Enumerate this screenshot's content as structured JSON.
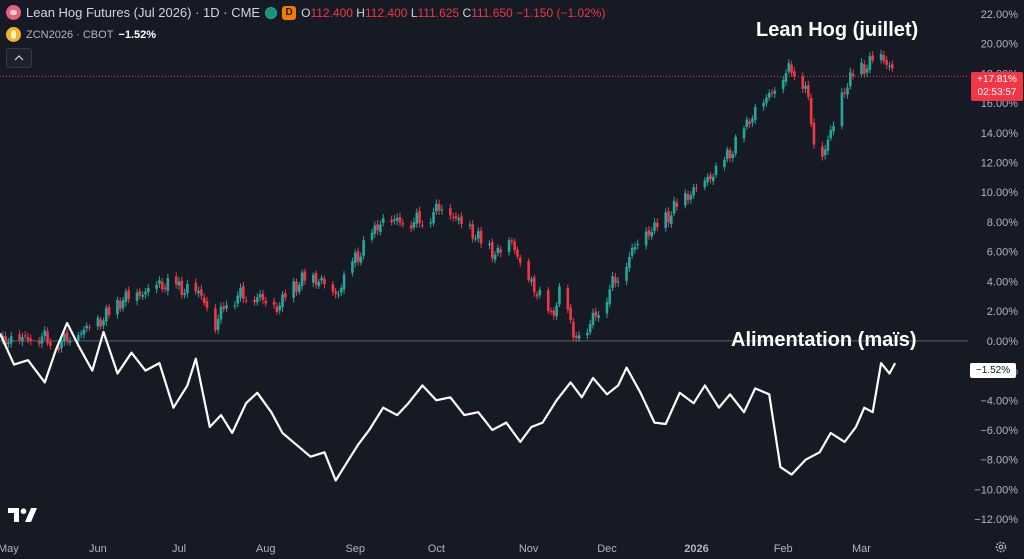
{
  "header": {
    "title": "Lean Hog Futures (Jul 2026) · 1D · CME",
    "interval_badge": "D",
    "ohlc": {
      "o_label": "O",
      "o": "112.400",
      "h_label": "H",
      "h": "112.400",
      "l_label": "L",
      "l": "111.625",
      "c_label": "C",
      "c": "111.650",
      "change": "−1.150 (−1.02%)"
    },
    "compare_symbol": "ZCN2026 · CBOT",
    "compare_change": "−1.52%"
  },
  "labels": {
    "hog": "Lean Hog (juillet)",
    "corn": "Alimentation (maïs)"
  },
  "price_tag": {
    "pct": "+17.81%",
    "countdown": "02:53:57"
  },
  "corn_tag": "−1.52%",
  "colors": {
    "background": "#161a25",
    "up": "#26a69a",
    "down": "#f23645",
    "corn_line": "#ffffff",
    "grid_text": "#b2b5be",
    "zero_line": "#5d606b",
    "last_price_line": "#f23645"
  },
  "icons": {
    "hog": "pig-icon",
    "corn": "corn-icon",
    "logo": "tradingview-logo-icon",
    "settings": "gear-icon",
    "collapse": "chevron-up-icon"
  },
  "chart_data": {
    "type": "line",
    "title": "Lean Hog Futures (Jul 2026) · 1D · CME",
    "scale": "percent change",
    "y_ticks": [
      "22.00%",
      "20.00%",
      "18.00%",
      "16.00%",
      "14.00%",
      "12.00%",
      "10.00%",
      "8.00%",
      "6.00%",
      "4.00%",
      "2.00%",
      "0.00%",
      "−2.00%",
      "−4.00%",
      "−6.00%",
      "−8.00%",
      "−10.00%",
      "−12.00%"
    ],
    "ylim": [
      -13.0,
      22.4
    ],
    "x_ticks": [
      "May",
      "Jun",
      "Jul",
      "Aug",
      "Sep",
      "Oct",
      "Nov",
      "Dec",
      "2026",
      "Feb",
      "Mar"
    ],
    "x_tick_dates": [
      "2025-05-01",
      "2025-06-02",
      "2025-07-01",
      "2025-08-01",
      "2025-09-02",
      "2025-10-01",
      "2025-11-03",
      "2025-12-01",
      "2026-01-02",
      "2026-02-02",
      "2026-03-02"
    ],
    "xlim": [
      "2025-04-28",
      "2026-04-08"
    ],
    "last_value_line": 17.8,
    "series": [
      {
        "name": "Lean Hog Futures (Jul 2026)",
        "type": "candlestick",
        "anchors": [
          [
            "2025-04-29",
            0.0
          ],
          [
            "2025-05-12",
            0.3
          ],
          [
            "2025-05-19",
            -0.1
          ],
          [
            "2025-05-27",
            0.6
          ],
          [
            "2025-06-04",
            1.5
          ],
          [
            "2025-06-11",
            2.8
          ],
          [
            "2025-06-18",
            3.2
          ],
          [
            "2025-06-25",
            3.8
          ],
          [
            "2025-07-02",
            3.5
          ],
          [
            "2025-07-09",
            3.1
          ],
          [
            "2025-07-14",
            1.0
          ],
          [
            "2025-07-18",
            2.8
          ],
          [
            "2025-07-24",
            3.1
          ],
          [
            "2025-07-30",
            2.9
          ],
          [
            "2025-08-05",
            2.2
          ],
          [
            "2025-08-10",
            3.5
          ],
          [
            "2025-08-16",
            4.3
          ],
          [
            "2025-08-21",
            4.0
          ],
          [
            "2025-08-26",
            3.0
          ],
          [
            "2025-09-01",
            5.2
          ],
          [
            "2025-09-06",
            6.5
          ],
          [
            "2025-09-11",
            8.0
          ],
          [
            "2025-09-17",
            8.1
          ],
          [
            "2025-09-23",
            8.0
          ],
          [
            "2025-09-29",
            8.5
          ],
          [
            "2025-10-03",
            9.1
          ],
          [
            "2025-10-08",
            8.2
          ],
          [
            "2025-10-13",
            7.5
          ],
          [
            "2025-10-18",
            6.4
          ],
          [
            "2025-10-23",
            5.8
          ],
          [
            "2025-10-28",
            6.8
          ],
          [
            "2025-11-01",
            4.5
          ],
          [
            "2025-11-06",
            3.3
          ],
          [
            "2025-11-11",
            1.5
          ],
          [
            "2025-11-15",
            3.8
          ],
          [
            "2025-11-19",
            0.3
          ],
          [
            "2025-11-23",
            0.5
          ],
          [
            "2025-11-27",
            1.8
          ],
          [
            "2025-12-02",
            3.5
          ],
          [
            "2025-12-07",
            5.0
          ],
          [
            "2025-12-13",
            7.0
          ],
          [
            "2025-12-20",
            7.8
          ],
          [
            "2025-12-28",
            9.5
          ],
          [
            "2026-01-04",
            10.5
          ],
          [
            "2026-01-11",
            11.8
          ],
          [
            "2026-01-17",
            13.5
          ],
          [
            "2026-01-23",
            15.5
          ],
          [
            "2026-01-28",
            16.5
          ],
          [
            "2026-02-02",
            18.0
          ],
          [
            "2026-02-06",
            18.3
          ],
          [
            "2026-02-10",
            17.2
          ],
          [
            "2026-02-13",
            13.5
          ],
          [
            "2026-02-16",
            12.5
          ],
          [
            "2026-02-20",
            14.5
          ],
          [
            "2026-02-24",
            17.0
          ],
          [
            "2026-02-28",
            18.1
          ],
          [
            "2026-03-04",
            18.5
          ],
          [
            "2026-03-08",
            19.3
          ],
          [
            "2026-03-12",
            18.5
          ],
          [
            "2026-03-14",
            17.8
          ]
        ]
      },
      {
        "name": "ZCN2026 · CBOT",
        "type": "line",
        "anchors": [
          [
            "2025-04-28",
            0.5
          ],
          [
            "2025-05-03",
            -1.6
          ],
          [
            "2025-05-08",
            -1.3
          ],
          [
            "2025-05-14",
            -2.8
          ],
          [
            "2025-05-18",
            -0.6
          ],
          [
            "2025-05-22",
            1.2
          ],
          [
            "2025-05-26",
            -0.3
          ],
          [
            "2025-05-31",
            -2.0
          ],
          [
            "2025-06-04",
            0.6
          ],
          [
            "2025-06-09",
            -2.2
          ],
          [
            "2025-06-14",
            -0.8
          ],
          [
            "2025-06-19",
            -2.0
          ],
          [
            "2025-06-24",
            -1.5
          ],
          [
            "2025-06-29",
            -4.5
          ],
          [
            "2025-07-04",
            -3.0
          ],
          [
            "2025-07-07",
            -1.2
          ],
          [
            "2025-07-12",
            -5.8
          ],
          [
            "2025-07-16",
            -5.0
          ],
          [
            "2025-07-20",
            -6.2
          ],
          [
            "2025-07-25",
            -4.2
          ],
          [
            "2025-07-29",
            -3.5
          ],
          [
            "2025-08-03",
            -4.8
          ],
          [
            "2025-08-07",
            -6.2
          ],
          [
            "2025-08-12",
            -7.0
          ],
          [
            "2025-08-17",
            -7.8
          ],
          [
            "2025-08-22",
            -7.5
          ],
          [
            "2025-08-26",
            -9.4
          ],
          [
            "2025-08-30",
            -8.2
          ],
          [
            "2025-09-03",
            -7.0
          ],
          [
            "2025-09-07",
            -6.0
          ],
          [
            "2025-09-12",
            -4.5
          ],
          [
            "2025-09-17",
            -5.0
          ],
          [
            "2025-09-21",
            -4.2
          ],
          [
            "2025-09-26",
            -3.0
          ],
          [
            "2025-10-01",
            -4.0
          ],
          [
            "2025-10-06",
            -3.8
          ],
          [
            "2025-10-11",
            -5.0
          ],
          [
            "2025-10-16",
            -4.8
          ],
          [
            "2025-10-21",
            -6.0
          ],
          [
            "2025-10-26",
            -5.5
          ],
          [
            "2025-10-31",
            -6.8
          ],
          [
            "2025-11-04",
            -5.8
          ],
          [
            "2025-11-08",
            -5.5
          ],
          [
            "2025-11-13",
            -4.0
          ],
          [
            "2025-11-18",
            -2.8
          ],
          [
            "2025-11-22",
            -3.8
          ],
          [
            "2025-11-26",
            -2.5
          ],
          [
            "2025-12-01",
            -3.6
          ],
          [
            "2025-12-05",
            -3.0
          ],
          [
            "2025-12-08",
            -1.8
          ],
          [
            "2025-12-13",
            -3.5
          ],
          [
            "2025-12-18",
            -5.5
          ],
          [
            "2025-12-22",
            -5.6
          ],
          [
            "2025-12-27",
            -3.5
          ],
          [
            "2026-01-01",
            -4.2
          ],
          [
            "2026-01-05",
            -3.0
          ],
          [
            "2026-01-10",
            -4.5
          ],
          [
            "2026-01-14",
            -3.6
          ],
          [
            "2026-01-19",
            -4.8
          ],
          [
            "2026-01-23",
            -3.2
          ],
          [
            "2026-01-28",
            -3.6
          ],
          [
            "2026-02-01",
            -8.5
          ],
          [
            "2026-02-05",
            -9.0
          ],
          [
            "2026-02-10",
            -8.0
          ],
          [
            "2026-02-15",
            -7.5
          ],
          [
            "2026-02-19",
            -6.2
          ],
          [
            "2026-02-24",
            -6.8
          ],
          [
            "2026-02-28",
            -5.8
          ],
          [
            "2026-03-03",
            -4.5
          ],
          [
            "2026-03-06",
            -4.8
          ],
          [
            "2026-03-09",
            -1.5
          ],
          [
            "2026-03-12",
            -2.2
          ],
          [
            "2026-03-14",
            -1.5
          ]
        ]
      }
    ]
  }
}
